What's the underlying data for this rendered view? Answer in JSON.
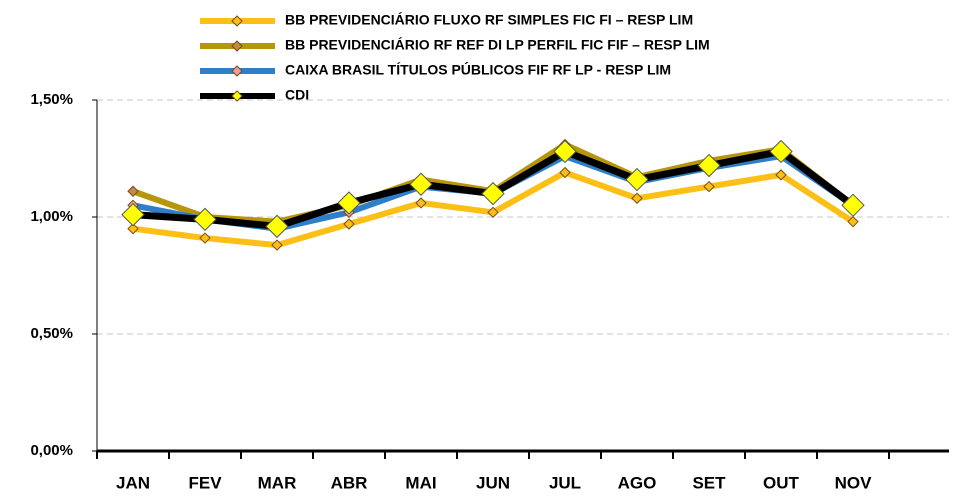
{
  "chart_data": {
    "type": "line",
    "categories": [
      "JAN",
      "FEV",
      "MAR",
      "ABR",
      "MAI",
      "JUN",
      "JUL",
      "AGO",
      "SET",
      "OUT",
      "NOV",
      null
    ],
    "series": [
      {
        "name": "BB PREVIDENCIÁRIO FLUXO RF SIMPLES FIC FI – RESP LIM",
        "color": "#fbbf16",
        "marker_color": "#fbbf16",
        "values": [
          0.95,
          0.91,
          0.88,
          0.97,
          1.06,
          1.02,
          1.19,
          1.08,
          1.13,
          1.18,
          0.98,
          null
        ]
      },
      {
        "name": "BB PREVIDENCIÁRIO RF REF DI LP PERFIL FIC FIF – RESP LIM",
        "color": "#b8960c",
        "marker_color": "#c08a4a",
        "values": [
          1.11,
          1.0,
          0.98,
          1.05,
          1.16,
          1.11,
          1.31,
          1.17,
          1.24,
          1.29,
          1.05,
          null
        ]
      },
      {
        "name": "CAIXA BRASIL TÍTULOS PÚBLICOS FIF RF LP - RESP LIM",
        "color": "#2e7fc7",
        "marker_color": "#e8a09a",
        "values": [
          1.05,
          0.99,
          0.95,
          1.02,
          1.13,
          1.1,
          1.26,
          1.15,
          1.21,
          1.26,
          1.05,
          null
        ]
      },
      {
        "name": "CDI",
        "color": "#000000",
        "marker_color": "#ffff00",
        "values": [
          1.01,
          0.99,
          0.96,
          1.06,
          1.14,
          1.1,
          1.28,
          1.16,
          1.22,
          1.28,
          1.05,
          null
        ]
      }
    ],
    "ylim": [
      0,
      1.5
    ],
    "yticks": [
      {
        "value": 0,
        "label": "0,00%"
      },
      {
        "value": 0.5,
        "label": "0,50%"
      },
      {
        "value": 1.0,
        "label": "1,00%"
      },
      {
        "value": 1.5,
        "label": "1,50%"
      }
    ],
    "grid": true,
    "legend": "top"
  }
}
